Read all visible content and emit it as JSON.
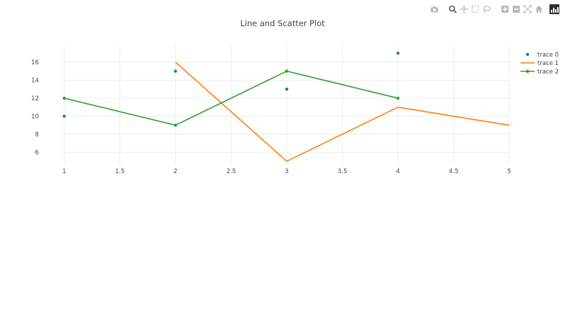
{
  "toolbar": {
    "icons": [
      "camera-icon",
      "zoom-icon",
      "pan-icon",
      "box-select-icon",
      "lasso-select-icon",
      "zoom-in-icon",
      "zoom-out-icon",
      "autoscale-icon",
      "reset-axes-icon",
      "plotly-logo-icon"
    ],
    "colors": {
      "icon": "#b9b9b9",
      "active": "#555555",
      "logo_bg": "#2e2e2e"
    }
  },
  "chart_data": {
    "type": "line",
    "title": "Line and Scatter Plot",
    "xlabel": "",
    "ylabel": "",
    "xlim": [
      1,
      5
    ],
    "ylim": [
      4.7,
      17.8
    ],
    "x_ticks": [
      "1",
      "1.5",
      "2",
      "2.5",
      "3",
      "3.5",
      "4",
      "4.5",
      "5"
    ],
    "y_ticks": [
      "6",
      "8",
      "10",
      "12",
      "14",
      "16"
    ],
    "grid": true,
    "legend_position": "top-right",
    "series": [
      {
        "name": "trace 0",
        "mode": "markers",
        "color": "#1f77b4",
        "x": [
          1,
          2,
          3,
          4
        ],
        "y": [
          10,
          15,
          13,
          17
        ]
      },
      {
        "name": "trace 1",
        "mode": "lines",
        "color": "#ff7f0e",
        "x": [
          2,
          3,
          4,
          5
        ],
        "y": [
          16,
          5,
          11,
          9
        ]
      },
      {
        "name": "trace 2",
        "mode": "lines+markers",
        "color": "#2ca02c",
        "x": [
          1,
          2,
          3,
          4
        ],
        "y": [
          12,
          9,
          15,
          12
        ]
      }
    ]
  }
}
